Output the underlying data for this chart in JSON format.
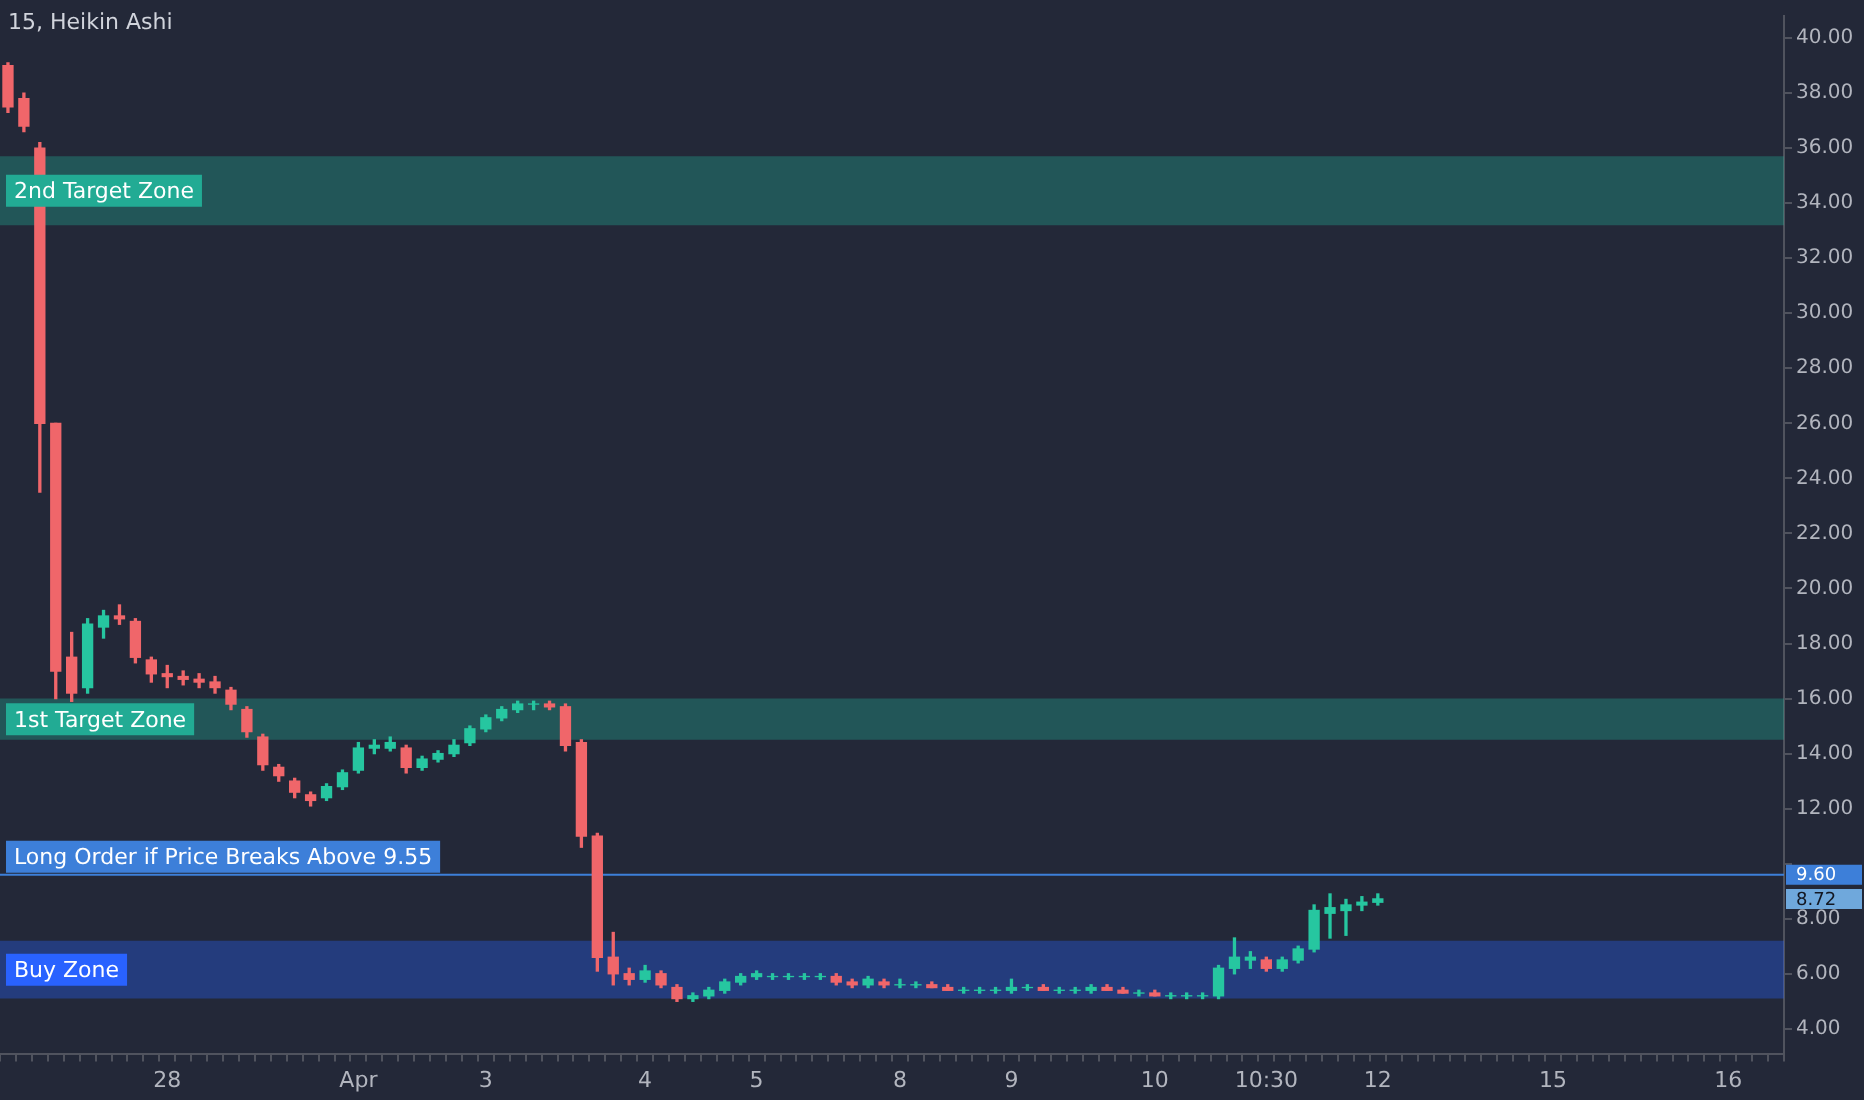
{
  "chart_data": {
    "type": "candlestick",
    "title": "15, Heikin Ashi",
    "categories": [
      null,
      null,
      null,
      null,
      null,
      null,
      null,
      null,
      null,
      null,
      "28",
      null,
      null,
      null,
      null,
      null,
      null,
      null,
      null,
      null,
      null,
      null,
      "Apr",
      null,
      null,
      null,
      null,
      null,
      null,
      null,
      "3",
      null,
      null,
      null,
      null,
      null,
      null,
      null,
      null,
      null,
      "4",
      null,
      null,
      null,
      null,
      null,
      null,
      "5",
      null,
      null,
      null,
      null,
      null,
      null,
      null,
      null,
      "8",
      null,
      null,
      null,
      null,
      null,
      null,
      "9",
      null,
      null,
      null,
      null,
      null,
      null,
      null,
      null,
      "10",
      null,
      null,
      null,
      null,
      null,
      null,
      "10:30",
      null,
      null,
      null,
      null,
      null,
      null,
      "12",
      null,
      null,
      null,
      null,
      null,
      null,
      null,
      null,
      null,
      null,
      "15",
      null,
      null,
      null,
      null,
      null,
      null,
      null,
      null,
      null,
      null,
      "16",
      null,
      null,
      null
    ],
    "ohlc": [
      [
        39,
        39.1,
        37.3,
        37.5
      ],
      [
        37.8,
        38,
        36.6,
        36.8
      ],
      [
        36,
        36.2,
        23.5,
        26
      ],
      [
        26,
        26,
        16,
        17
      ],
      [
        17.5,
        18.4,
        15.9,
        16.2
      ],
      [
        16.4,
        18.9,
        16.2,
        18.7
      ],
      [
        18.6,
        19.2,
        18.2,
        19
      ],
      [
        19,
        19.4,
        18.7,
        18.9
      ],
      [
        18.8,
        18.9,
        17.3,
        17.5
      ],
      [
        17.4,
        17.5,
        16.6,
        16.9
      ],
      [
        16.9,
        17.2,
        16.4,
        16.8
      ],
      [
        16.8,
        17,
        16.5,
        16.7
      ],
      [
        16.7,
        16.9,
        16.4,
        16.6
      ],
      [
        16.6,
        16.8,
        16.2,
        16.4
      ],
      [
        16.3,
        16.4,
        15.6,
        15.8
      ],
      [
        15.6,
        15.7,
        14.6,
        14.8
      ],
      [
        14.6,
        14.7,
        13.4,
        13.6
      ],
      [
        13.5,
        13.6,
        13,
        13.2
      ],
      [
        13,
        13.1,
        12.4,
        12.6
      ],
      [
        12.5,
        12.6,
        12.1,
        12.3
      ],
      [
        12.4,
        12.9,
        12.3,
        12.8
      ],
      [
        12.8,
        13.4,
        12.7,
        13.3
      ],
      [
        13.4,
        14.4,
        13.3,
        14.2
      ],
      [
        14.2,
        14.5,
        14,
        14.3
      ],
      [
        14.2,
        14.6,
        14.1,
        14.4
      ],
      [
        14.2,
        14.3,
        13.3,
        13.5
      ],
      [
        13.5,
        13.9,
        13.4,
        13.8
      ],
      [
        13.8,
        14.1,
        13.7,
        14
      ],
      [
        14,
        14.5,
        13.9,
        14.3
      ],
      [
        14.4,
        15,
        14.3,
        14.9
      ],
      [
        14.9,
        15.4,
        14.8,
        15.3
      ],
      [
        15.3,
        15.7,
        15.2,
        15.6
      ],
      [
        15.6,
        15.9,
        15.5,
        15.8
      ],
      [
        15.8,
        15.9,
        15.6,
        15.8
      ],
      [
        15.8,
        15.9,
        15.6,
        15.7
      ],
      [
        15.7,
        15.8,
        14.1,
        14.3
      ],
      [
        14.4,
        14.5,
        10.6,
        11
      ],
      [
        11,
        11.1,
        6.1,
        6.6
      ],
      [
        6.6,
        7.5,
        5.6,
        6
      ],
      [
        6,
        6.2,
        5.6,
        5.8
      ],
      [
        5.8,
        6.3,
        5.7,
        6.1
      ],
      [
        6,
        6.1,
        5.5,
        5.6
      ],
      [
        5.5,
        5.6,
        5,
        5.1
      ],
      [
        5.1,
        5.3,
        5,
        5.2
      ],
      [
        5.2,
        5.5,
        5.1,
        5.4
      ],
      [
        5.4,
        5.8,
        5.3,
        5.7
      ],
      [
        5.7,
        6,
        5.6,
        5.9
      ],
      [
        5.9,
        6.1,
        5.8,
        6
      ],
      [
        5.9,
        6,
        5.8,
        5.9
      ],
      [
        5.9,
        6,
        5.8,
        5.9
      ],
      [
        5.9,
        6,
        5.8,
        5.9
      ],
      [
        5.9,
        6,
        5.8,
        5.9
      ],
      [
        5.9,
        6,
        5.6,
        5.7
      ],
      [
        5.7,
        5.8,
        5.5,
        5.6
      ],
      [
        5.6,
        5.9,
        5.5,
        5.8
      ],
      [
        5.7,
        5.8,
        5.5,
        5.6
      ],
      [
        5.6,
        5.8,
        5.5,
        5.6
      ],
      [
        5.6,
        5.7,
        5.5,
        5.6
      ],
      [
        5.6,
        5.7,
        5.5,
        5.5
      ],
      [
        5.5,
        5.6,
        5.4,
        5.4
      ],
      [
        5.4,
        5.5,
        5.3,
        5.4
      ],
      [
        5.4,
        5.5,
        5.3,
        5.4
      ],
      [
        5.4,
        5.5,
        5.3,
        5.4
      ],
      [
        5.4,
        5.8,
        5.3,
        5.5
      ],
      [
        5.5,
        5.6,
        5.4,
        5.5
      ],
      [
        5.5,
        5.6,
        5.4,
        5.4
      ],
      [
        5.4,
        5.5,
        5.3,
        5.4
      ],
      [
        5.4,
        5.5,
        5.3,
        5.4
      ],
      [
        5.4,
        5.6,
        5.3,
        5.5
      ],
      [
        5.5,
        5.6,
        5.4,
        5.4
      ],
      [
        5.4,
        5.5,
        5.3,
        5.3
      ],
      [
        5.3,
        5.4,
        5.2,
        5.3
      ],
      [
        5.3,
        5.4,
        5.2,
        5.2
      ],
      [
        5.2,
        5.3,
        5.1,
        5.2
      ],
      [
        5.2,
        5.3,
        5.1,
        5.2
      ],
      [
        5.2,
        5.3,
        5.1,
        5.2
      ],
      [
        5.2,
        6.3,
        5.1,
        6.2
      ],
      [
        6.2,
        7.3,
        6,
        6.6
      ],
      [
        6.5,
        6.8,
        6.2,
        6.6
      ],
      [
        6.5,
        6.6,
        6.1,
        6.2
      ],
      [
        6.2,
        6.6,
        6.1,
        6.5
      ],
      [
        6.5,
        7,
        6.4,
        6.9
      ],
      [
        6.9,
        8.5,
        6.8,
        8.3
      ],
      [
        8.2,
        8.9,
        7.3,
        8.4
      ],
      [
        8.3,
        8.7,
        7.4,
        8.5
      ],
      [
        8.5,
        8.8,
        8.3,
        8.6
      ],
      [
        8.6,
        8.9,
        8.5,
        8.72
      ],
      null,
      null,
      null,
      null,
      null,
      null,
      null,
      null,
      null,
      null,
      null,
      null,
      null,
      null,
      null,
      null,
      null,
      null,
      null,
      null,
      null,
      null,
      null,
      null,
      null
    ],
    "ylim": [
      3.1,
      40.8
    ],
    "yticks": [
      {
        "value": 4,
        "label": "4.00"
      },
      {
        "value": 6,
        "label": "6.00"
      },
      {
        "value": 8,
        "label": "8.00"
      },
      {
        "value": 10,
        "label": null
      },
      {
        "value": 12,
        "label": "12.00"
      },
      {
        "value": 14,
        "label": "14.00"
      },
      {
        "value": 16,
        "label": "16.00"
      },
      {
        "value": 18,
        "label": "18.00"
      },
      {
        "value": 20,
        "label": "20.00"
      },
      {
        "value": 22,
        "label": "22.00"
      },
      {
        "value": 24,
        "label": "24.00"
      },
      {
        "value": 26,
        "label": "26.00"
      },
      {
        "value": 28,
        "label": "28.00"
      },
      {
        "value": 30,
        "label": "30.00"
      },
      {
        "value": 32,
        "label": "32.00"
      },
      {
        "value": 34,
        "label": "34.00"
      },
      {
        "value": 36,
        "label": "36.00"
      },
      {
        "value": 38,
        "label": "38.00"
      },
      {
        "value": 40,
        "label": "40.00"
      }
    ],
    "bands": [
      {
        "axis": "y",
        "from": 33.2,
        "to": 35.7,
        "label": "2nd Target Zone",
        "color": "#22ab94"
      },
      {
        "axis": "y",
        "from": 14.5,
        "to": 16,
        "label": "1st Target Zone",
        "color": "#22ab94"
      },
      {
        "axis": "y",
        "from": 5.1,
        "to": 7.2,
        "label": "Buy Zone",
        "color": "#2962ff"
      }
    ],
    "ref_lines": [
      {
        "axis": "y",
        "value": 9.6,
        "label": "Long Order if Price Breaks Above 9.55",
        "color": "#3d7fd9",
        "line_style": "solid"
      }
    ],
    "annotations": [
      "9.60",
      "8.72"
    ],
    "grid": false,
    "legend": false
  }
}
